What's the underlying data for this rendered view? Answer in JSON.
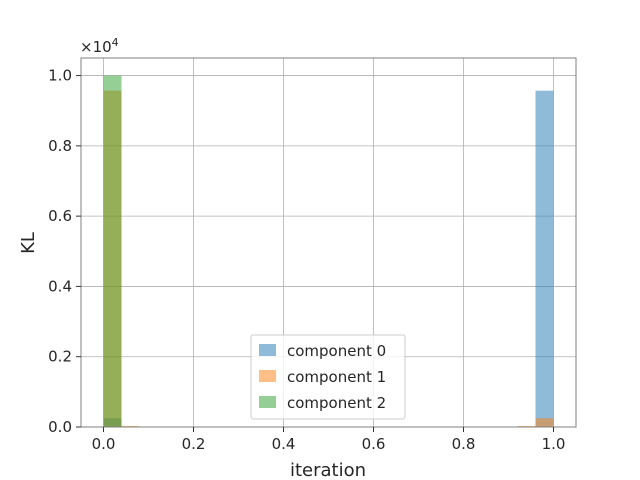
{
  "chart_data": {
    "type": "bar",
    "title": "",
    "xlabel": "iteration",
    "ylabel": "KL",
    "xlim": [
      -0.05,
      1.05
    ],
    "ylim": [
      0,
      10500
    ],
    "y_multiplier_label": "×10",
    "y_multiplier_exponent": "4",
    "y_tick_scale": 10000,
    "xticks": [
      0.0,
      0.2,
      0.4,
      0.6,
      0.8,
      1.0
    ],
    "yticks": [
      0.0,
      0.2,
      0.4,
      0.6,
      0.8,
      1.0
    ],
    "grid": true,
    "legend_position": "bottom-center",
    "bin_width": 0.04,
    "series": [
      {
        "name": "component 0",
        "color": "#1f77b4",
        "bins": [
          {
            "x0": 0.0,
            "x1": 0.04,
            "count": 250
          },
          {
            "x0": 0.96,
            "x1": 1.0,
            "count": 9570
          }
        ]
      },
      {
        "name": "component 1",
        "color": "#ff7f0e",
        "bins": [
          {
            "x0": 0.0,
            "x1": 0.04,
            "count": 9570
          },
          {
            "x0": 0.04,
            "x1": 0.08,
            "count": 30
          },
          {
            "x0": 0.92,
            "x1": 0.96,
            "count": 30
          },
          {
            "x0": 0.96,
            "x1": 1.0,
            "count": 250
          }
        ]
      },
      {
        "name": "component 2",
        "color": "#2ca02c",
        "bins": [
          {
            "x0": 0.0,
            "x1": 0.04,
            "count": 10000
          }
        ]
      }
    ]
  }
}
